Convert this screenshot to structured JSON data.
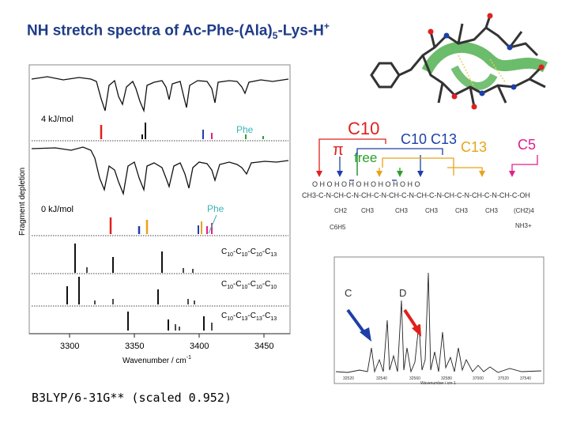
{
  "title": {
    "main": "NH stretch spectra of Ac-Phe-(Ala)",
    "sub": "5",
    "after": "-Lys-H",
    "sup": "+"
  },
  "footer": "B3LYP/6-31G** (scaled 0.952)",
  "left_panel": {
    "ylabel": "Fragment depletion",
    "xlabel": "Wavenumber / cm",
    "xlabel_sup": "-1",
    "xticks": [
      "3300",
      "3350",
      "3400",
      "3450"
    ],
    "energy_upper": "4 kJ/mol",
    "energy_lower": "0 kJ/mol",
    "phe_upper": "Phe",
    "phe_lower": "Phe",
    "stick_labels": [
      {
        "parts": [
          "C",
          "10",
          "-C",
          "10",
          "-C",
          "10",
          "-C",
          "13"
        ]
      },
      {
        "parts": [
          "C",
          "10",
          "-C",
          "10",
          "-C",
          "10",
          "-C",
          "10"
        ]
      },
      {
        "parts": [
          "C",
          "10",
          "-C",
          "13",
          "-C",
          "13",
          "-C",
          "13"
        ]
      }
    ]
  },
  "structure": {
    "ring_labels": {
      "c10_red": "C10",
      "c10_blue": "C10",
      "c13_blue": "C13",
      "c13_orange": "C13",
      "c5_pink": "C5",
      "pi": "π",
      "free": "free"
    },
    "backbone": "O H  O H  O H  O H  O H  O H  O H  O",
    "chain": "CH3-C-N-CH-C-N-CH-C-N-CH-C-N-CH-C-N-CH-C-N-CH-C-N-CH-C-OH",
    "side": [
      "CH2",
      "C6H5",
      "CH3",
      "CH3",
      "CH3",
      "CH3",
      "CH3",
      "(CH2)4",
      "NH3+"
    ]
  },
  "right_panel": {
    "label_c": "C",
    "label_d": "D",
    "xticks": [
      "32520",
      "32540",
      "32560",
      "32580",
      "37000",
      "37520",
      "37540"
    ],
    "xlabel": "Wavenumber / cm-1"
  },
  "colors": {
    "title": "#1f3c88",
    "red": "#e0201b",
    "blue": "#1e3fa8",
    "orange": "#e8a317",
    "pink": "#e0208a",
    "teal": "#3bb3b3",
    "green": "#2ca02c"
  }
}
